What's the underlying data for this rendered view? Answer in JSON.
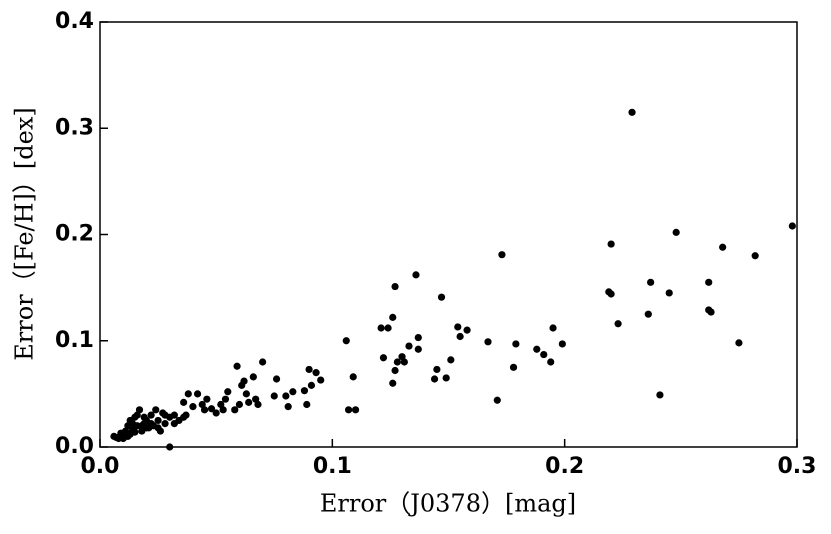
{
  "chart_data": {
    "type": "scatter",
    "xlabel": "Error（J0378）[mag]",
    "ylabel": "Error（[Fe/H]）[dex]",
    "color": "#000000",
    "xlim": [
      0,
      0.3
    ],
    "xticks": [
      {
        "value": 0,
        "label": "0.0"
      },
      0.1,
      0.2,
      0.3
    ],
    "ylim": [
      0,
      0.4
    ],
    "yticks": [
      {
        "value": 0,
        "label": "0.0"
      },
      0.1,
      0.2,
      0.3,
      0.4
    ],
    "x": [
      0.229,
      0.298,
      0.22,
      0.248,
      0.268,
      0.282,
      0.173,
      0.136,
      0.127,
      0.147,
      0.219,
      0.22,
      0.237,
      0.262,
      0.245,
      0.236,
      0.223,
      0.262,
      0.263,
      0.275,
      0.241,
      0.195,
      0.199,
      0.191,
      0.188,
      0.194,
      0.179,
      0.178,
      0.171,
      0.167,
      0.158,
      0.154,
      0.155,
      0.151,
      0.149,
      0.145,
      0.144,
      0.137,
      0.137,
      0.133,
      0.13,
      0.128,
      0.126,
      0.124,
      0.121,
      0.122,
      0.126,
      0.127,
      0.131,
      0.106,
      0.109,
      0.107,
      0.11,
      0.095,
      0.093,
      0.09,
      0.091,
      0.088,
      0.089,
      0.083,
      0.08,
      0.081,
      0.076,
      0.075,
      0.07,
      0.066,
      0.062,
      0.059,
      0.061,
      0.063,
      0.064,
      0.067,
      0.068,
      0.06,
      0.058,
      0.055,
      0.054,
      0.052,
      0.05,
      0.048,
      0.046,
      0.044,
      0.042,
      0.04,
      0.038,
      0.037,
      0.036,
      0.034,
      0.032,
      0.03,
      0.03,
      0.028,
      0.027,
      0.025,
      0.024,
      0.023,
      0.022,
      0.021,
      0.02,
      0.019,
      0.018,
      0.017,
      0.016,
      0.015,
      0.014,
      0.013,
      0.012,
      0.011,
      0.01,
      0.009,
      0.008,
      0.007,
      0.006,
      0.012,
      0.015,
      0.018,
      0.02,
      0.022,
      0.025,
      0.028,
      0.016,
      0.013,
      0.01,
      0.009,
      0.014,
      0.026,
      0.019,
      0.032,
      0.036,
      0.045,
      0.053
    ],
    "values": [
      0.315,
      0.208,
      0.191,
      0.202,
      0.188,
      0.18,
      0.181,
      0.162,
      0.151,
      0.141,
      0.146,
      0.144,
      0.155,
      0.155,
      0.145,
      0.125,
      0.116,
      0.129,
      0.127,
      0.098,
      0.049,
      0.112,
      0.097,
      0.087,
      0.092,
      0.08,
      0.097,
      0.075,
      0.044,
      0.099,
      0.11,
      0.113,
      0.104,
      0.082,
      0.065,
      0.073,
      0.064,
      0.103,
      0.092,
      0.095,
      0.085,
      0.08,
      0.122,
      0.112,
      0.112,
      0.084,
      0.06,
      0.072,
      0.08,
      0.1,
      0.066,
      0.035,
      0.035,
      0.063,
      0.07,
      0.073,
      0.058,
      0.053,
      0.04,
      0.052,
      0.048,
      0.038,
      0.064,
      0.048,
      0.08,
      0.066,
      0.062,
      0.076,
      0.058,
      0.05,
      0.042,
      0.045,
      0.04,
      0.04,
      0.035,
      0.052,
      0.045,
      0.04,
      0.032,
      0.036,
      0.045,
      0.04,
      0.05,
      0.038,
      0.05,
      0.03,
      0.042,
      0.025,
      0.03,
      0.028,
      0.0,
      0.022,
      0.032,
      0.025,
      0.035,
      0.02,
      0.03,
      0.018,
      0.025,
      0.022,
      0.015,
      0.035,
      0.02,
      0.028,
      0.016,
      0.012,
      0.02,
      0.015,
      0.012,
      0.01,
      0.008,
      0.009,
      0.01,
      0.01,
      0.014,
      0.02,
      0.018,
      0.022,
      0.018,
      0.03,
      0.03,
      0.025,
      0.008,
      0.013,
      0.022,
      0.015,
      0.028,
      0.022,
      0.028,
      0.035,
      0.035
    ]
  }
}
